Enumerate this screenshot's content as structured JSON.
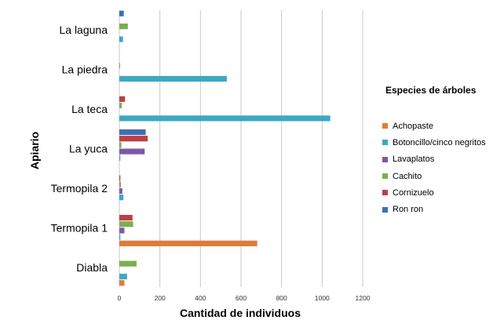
{
  "chart_data": {
    "type": "bar",
    "orientation": "horizontal",
    "title": "",
    "xlabel": "Cantidad de individuos",
    "ylabel": "Apiario",
    "xlim": [
      0,
      1200
    ],
    "xticks": [
      0,
      200,
      400,
      600,
      800,
      1000,
      1200
    ],
    "grid": true,
    "legend_title": "Especies de árboles",
    "legend_position": "right",
    "categories": [
      "La laguna",
      "La piedra",
      "La teca",
      "La yuca",
      "Termopila 2",
      "Termopila 1",
      "Diabla"
    ],
    "series": [
      {
        "name": "Achopaste",
        "color": "#E07B39",
        "values": [
          0,
          0,
          0,
          0,
          0,
          680,
          25
        ]
      },
      {
        "name": "Botoncillo/cinco negritos",
        "color": "#3DA8C2",
        "values": [
          18,
          530,
          1040,
          5,
          20,
          5,
          38
        ]
      },
      {
        "name": "Lavaplatos",
        "color": "#7B5AA6",
        "values": [
          0,
          0,
          0,
          125,
          15,
          25,
          0
        ]
      },
      {
        "name": "Cachito",
        "color": "#7DAE4E",
        "values": [
          42,
          3,
          12,
          10,
          8,
          68,
          85
        ]
      },
      {
        "name": "Cornizuelo",
        "color": "#BE3F45",
        "values": [
          0,
          0,
          28,
          140,
          5,
          65,
          0
        ]
      },
      {
        "name": "Ron ron",
        "color": "#3F6FB4",
        "values": [
          22,
          0,
          0,
          130,
          0,
          0,
          0
        ]
      }
    ]
  }
}
